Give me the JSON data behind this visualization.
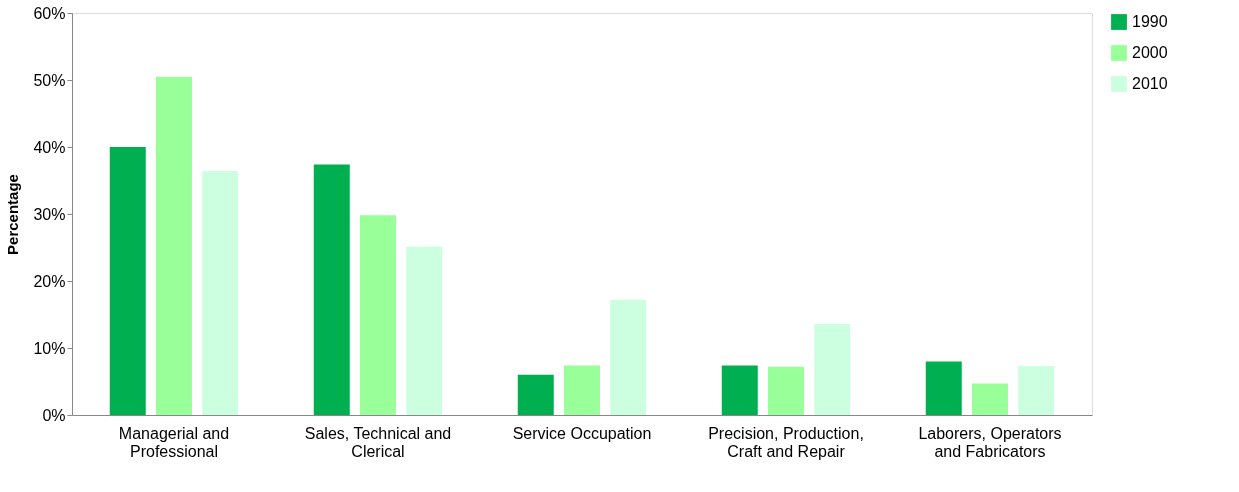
{
  "chart_data": {
    "type": "bar",
    "ylabel": "Percentage",
    "categories": [
      "Managerial and Professional",
      "Sales, Technical and Clerical",
      "Service Occupation",
      "Precision, Production, Craft and Repair",
      "Laborers, Operators and Fabricators"
    ],
    "series": [
      {
        "name": "1990",
        "color": "#00b050",
        "values": [
          40.0,
          37.4,
          6.0,
          7.4,
          8.0
        ]
      },
      {
        "name": "2000",
        "color": "#99ff99",
        "values": [
          50.5,
          29.8,
          7.4,
          7.2,
          4.7
        ]
      },
      {
        "name": "2010",
        "color": "#ccffe0",
        "values": [
          36.4,
          25.1,
          17.2,
          13.6,
          7.3
        ]
      }
    ],
    "ylim": [
      0,
      60
    ],
    "yticks": [
      {
        "value": 0,
        "label": "0%"
      },
      {
        "value": 10,
        "label": "10%"
      },
      {
        "value": 20,
        "label": "20%"
      },
      {
        "value": 30,
        "label": "30%"
      },
      {
        "value": 40,
        "label": "40%"
      },
      {
        "value": 50,
        "label": "50%"
      },
      {
        "value": 60,
        "label": "60%"
      }
    ],
    "grid": false,
    "legend": "right"
  }
}
